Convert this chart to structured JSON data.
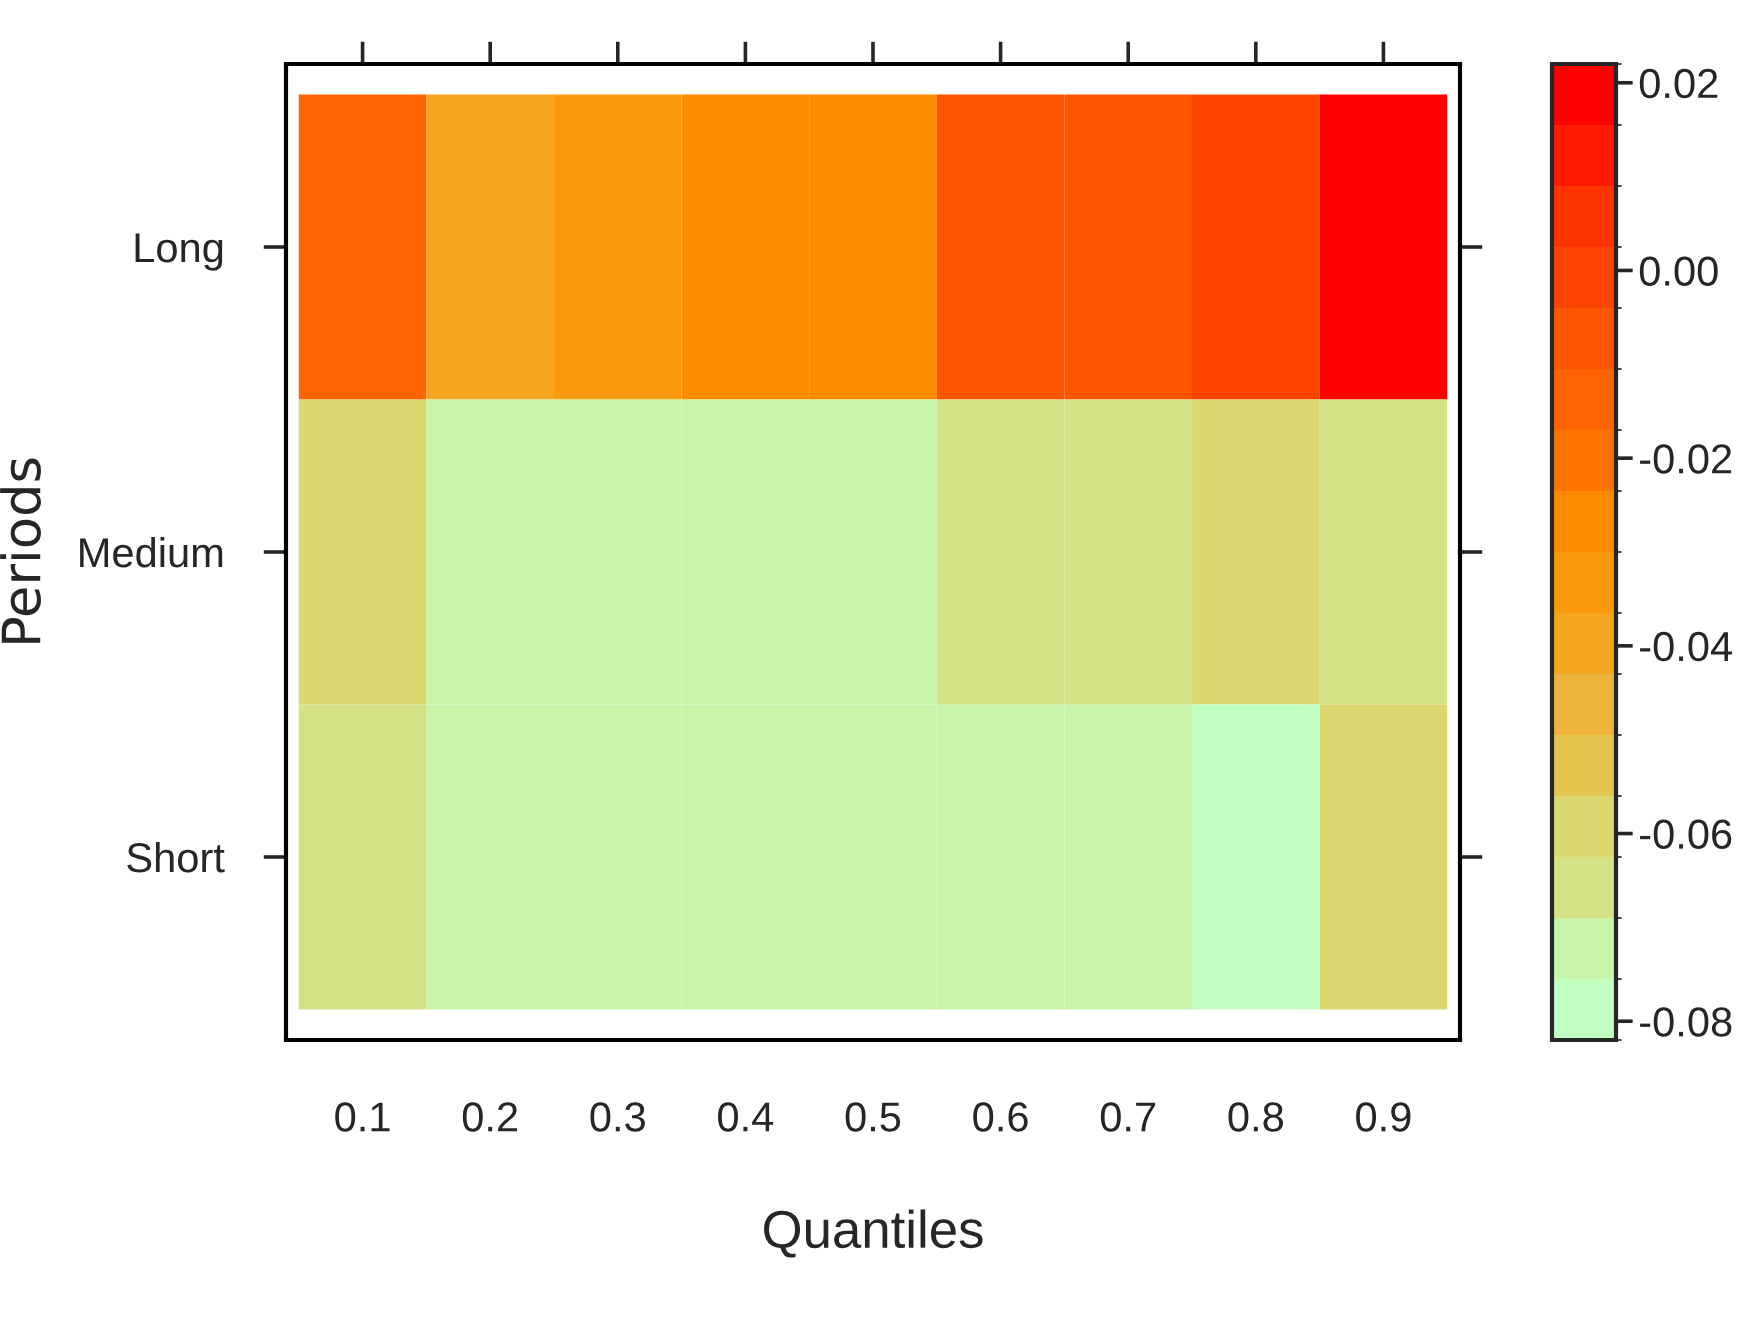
{
  "chart_data": {
    "type": "heatmap",
    "xlabel": "Quantiles",
    "ylabel": "Periods",
    "categories": [
      "0.1",
      "0.2",
      "0.3",
      "0.4",
      "0.5",
      "0.6",
      "0.7",
      "0.8",
      "0.9"
    ],
    "y_categories": [
      "Long",
      "Medium",
      "Short"
    ],
    "cells": [
      [
        -0.014,
        -0.04,
        -0.033,
        -0.027,
        -0.027,
        -0.007,
        -0.007,
        -0.001,
        0.022
      ],
      [
        -0.059,
        -0.072,
        -0.072,
        -0.072,
        -0.072,
        -0.066,
        -0.066,
        -0.059,
        -0.066
      ],
      [
        -0.066,
        -0.072,
        -0.072,
        -0.072,
        -0.072,
        -0.072,
        -0.072,
        -0.082,
        -0.059
      ]
    ],
    "clim": [
      -0.082,
      0.022
    ],
    "cticks": [
      {
        "value": -0.08,
        "label": "-0.08"
      },
      {
        "value": -0.06,
        "label": "-0.06"
      },
      {
        "value": -0.04,
        "label": "-0.04"
      },
      {
        "value": -0.02,
        "label": "-0.02"
      },
      {
        "value": 0.0,
        "label": "0.00"
      },
      {
        "value": 0.02,
        "label": "0.02"
      }
    ]
  }
}
